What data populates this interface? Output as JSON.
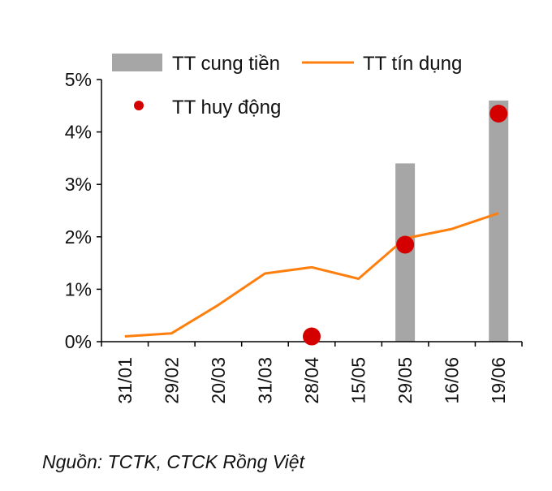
{
  "chart_data": {
    "type": "bar",
    "categories": [
      "31/01",
      "29/02",
      "20/03",
      "31/03",
      "28/04",
      "15/05",
      "29/05",
      "16/06",
      "19/06"
    ],
    "ylim": [
      0,
      5
    ],
    "yticks": [
      0,
      1,
      2,
      3,
      4,
      5
    ],
    "ytick_labels": [
      "0%",
      "1%",
      "2%",
      "3%",
      "4%",
      "5%"
    ],
    "grid": false,
    "legend_position": "top",
    "series": [
      {
        "name": "TT cung tiền",
        "type": "bar",
        "color": "#a6a6a6",
        "values": [
          null,
          null,
          null,
          null,
          null,
          null,
          3.4,
          null,
          4.6
        ]
      },
      {
        "name": "TT tín dụng",
        "type": "line",
        "color": "#ff7f0e",
        "values": [
          0.1,
          0.16,
          0.7,
          1.3,
          1.42,
          1.2,
          1.97,
          2.15,
          2.45
        ]
      },
      {
        "name": "TT huy động",
        "type": "scatter",
        "color": "#d40000",
        "values": [
          null,
          null,
          null,
          null,
          0.1,
          null,
          1.85,
          null,
          4.35
        ]
      }
    ],
    "source": "Nguồn: TCTK, CTCK Rồng Việt"
  }
}
